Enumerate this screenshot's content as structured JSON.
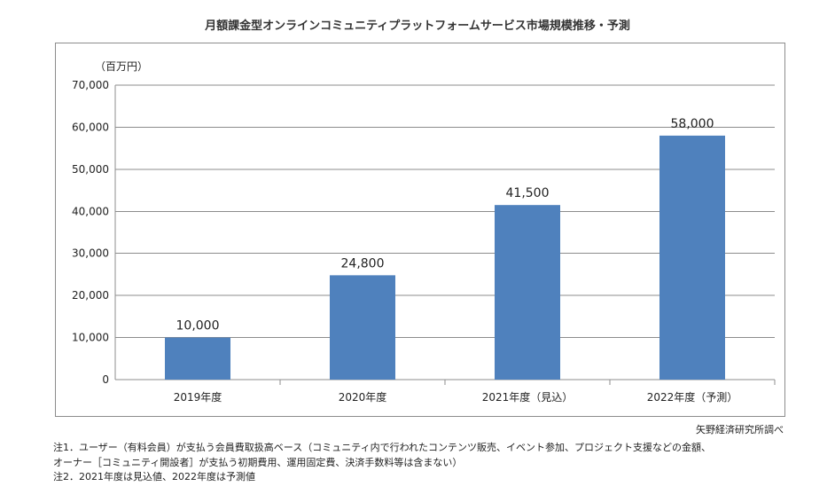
{
  "title": "月額課金型オンラインコミュニティプラットフォームサービス市場規模推移・予測",
  "chart_data": {
    "type": "bar",
    "unit_label": "（百万円）",
    "categories": [
      "2019年度",
      "2020年度",
      "2021年度（見込）",
      "2022年度（予測）"
    ],
    "values": [
      10000,
      24800,
      41500,
      58000
    ],
    "value_labels": [
      "10,000",
      "24,800",
      "41,500",
      "58,000"
    ],
    "ylim": [
      0,
      70000
    ],
    "yticks": [
      0,
      10000,
      20000,
      30000,
      40000,
      50000,
      60000,
      70000
    ],
    "ytick_labels": [
      "0",
      "10,000",
      "20,000",
      "30,000",
      "40,000",
      "50,000",
      "60,000",
      "70,000"
    ],
    "grid": true,
    "bar_color": "#4f81bd"
  },
  "source": "矢野経済研究所調べ",
  "notes": [
    "注1．ユーザー（有料会員）が支払う会員費取扱高ベース（コミュニティ内で行われたコンテンツ販売、イベント参加、プロジェクト支援などの金額、",
    "オーナー［コミュニティ開設者］が支払う初期費用、運用固定費、決済手数料等は含まない）",
    "注2．2021年度は見込値、2022年度は予測値"
  ]
}
